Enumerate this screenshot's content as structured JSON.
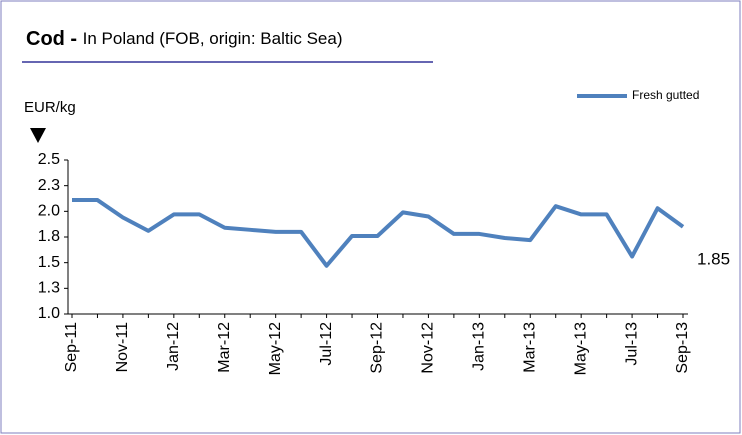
{
  "chart_data": {
    "type": "line",
    "title_bold": "Cod -",
    "title": "In Poland (FOB, origin: Baltic Sea)",
    "y_label": "EUR/kg",
    "categories": [
      "Sep-11",
      null,
      "Nov-11",
      null,
      "Jan-12",
      null,
      "Mar-12",
      null,
      "May-12",
      null,
      "Jul-12",
      null,
      "Sep-12",
      null,
      "Nov-12",
      null,
      "Jan-13",
      null,
      "Mar-13",
      null,
      "May-13",
      null,
      "Jul-13",
      null,
      "Sep-13"
    ],
    "series": [
      {
        "name": "Fresh gutted",
        "color": "#4f81bd",
        "values": [
          2.11,
          2.11,
          1.94,
          1.81,
          1.97,
          1.97,
          1.84,
          1.82,
          1.8,
          1.8,
          1.47,
          1.76,
          1.76,
          1.99,
          1.95,
          1.78,
          1.78,
          1.74,
          1.72,
          2.05,
          1.97,
          1.97,
          1.56,
          2.03,
          1.85
        ]
      }
    ],
    "ylim": [
      1.0,
      2.5
    ],
    "yticks": [
      {
        "value": 1.0,
        "label": "1.0"
      },
      {
        "value": 1.25,
        "label": "1.3"
      },
      1.5,
      {
        "value": 1.75,
        "label": "1.8"
      },
      {
        "value": 2.0,
        "label": "2.0"
      },
      {
        "value": 2.25,
        "label": "2.3"
      },
      2.5
    ],
    "legend": "top-right",
    "last_value_label": true
  }
}
